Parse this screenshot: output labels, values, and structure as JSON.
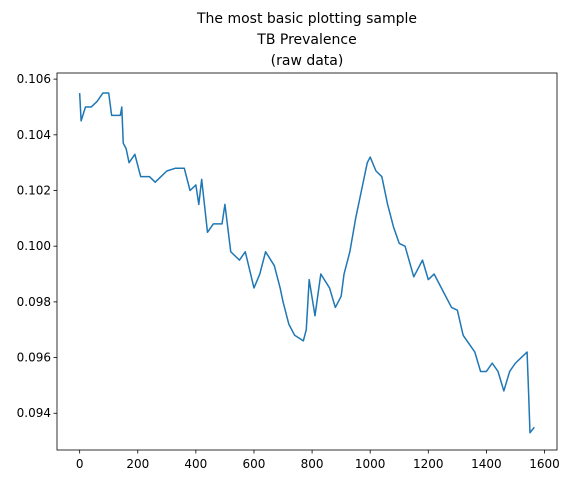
{
  "chart_data": {
    "type": "line",
    "title": [
      "The most basic plotting sample",
      "TB Prevalence",
      "(raw data)"
    ],
    "x": [
      0,
      5,
      20,
      40,
      60,
      80,
      100,
      110,
      140,
      145,
      150,
      160,
      170,
      190,
      210,
      240,
      260,
      280,
      300,
      330,
      360,
      380,
      400,
      410,
      420,
      440,
      460,
      490,
      500,
      520,
      550,
      570,
      600,
      620,
      640,
      670,
      690,
      700,
      720,
      740,
      770,
      780,
      790,
      810,
      830,
      860,
      880,
      900,
      910,
      930,
      950,
      970,
      990,
      1000,
      1020,
      1040,
      1060,
      1080,
      1100,
      1120,
      1150,
      1180,
      1200,
      1220,
      1250,
      1280,
      1300,
      1320,
      1340,
      1360,
      1380,
      1400,
      1420,
      1440,
      1460,
      1480,
      1500,
      1520,
      1540,
      1545,
      1550,
      1565
    ],
    "series": [
      {
        "color": "#1f77b4",
        "values": [
          0.1055,
          0.1045,
          0.105,
          0.105,
          0.1052,
          0.1055,
          0.1055,
          0.1047,
          0.1047,
          0.105,
          0.1037,
          0.1035,
          0.103,
          0.1033,
          0.1025,
          0.1025,
          0.1023,
          0.1025,
          0.1027,
          0.1028,
          0.1028,
          0.102,
          0.1022,
          0.1015,
          0.1024,
          0.1005,
          0.1008,
          0.1008,
          0.1015,
          0.0998,
          0.0995,
          0.0998,
          0.0985,
          0.099,
          0.0998,
          0.0993,
          0.0985,
          0.098,
          0.0972,
          0.0968,
          0.0966,
          0.097,
          0.0988,
          0.0975,
          0.099,
          0.0985,
          0.0978,
          0.0982,
          0.099,
          0.0998,
          0.101,
          0.102,
          0.103,
          0.1032,
          0.1027,
          0.1025,
          0.1015,
          0.1007,
          0.1001,
          0.1,
          0.0989,
          0.0995,
          0.0988,
          0.099,
          0.0984,
          0.0978,
          0.0977,
          0.0968,
          0.0965,
          0.0962,
          0.0955,
          0.0955,
          0.0958,
          0.0955,
          0.0948,
          0.0955,
          0.0958,
          0.096,
          0.0962,
          0.0948,
          0.0933,
          0.0935
        ]
      }
    ],
    "xlim": [
      -78,
      1643
    ],
    "xticks": [
      0,
      200,
      400,
      600,
      800,
      1000,
      1200,
      1400,
      1600
    ],
    "ylim": [
      0.09268,
      0.10622
    ],
    "yticks": [
      0.094,
      0.096,
      0.098,
      {
        "value": 0.1,
        "label": "0.100"
      },
      0.102,
      0.104,
      0.106
    ]
  }
}
